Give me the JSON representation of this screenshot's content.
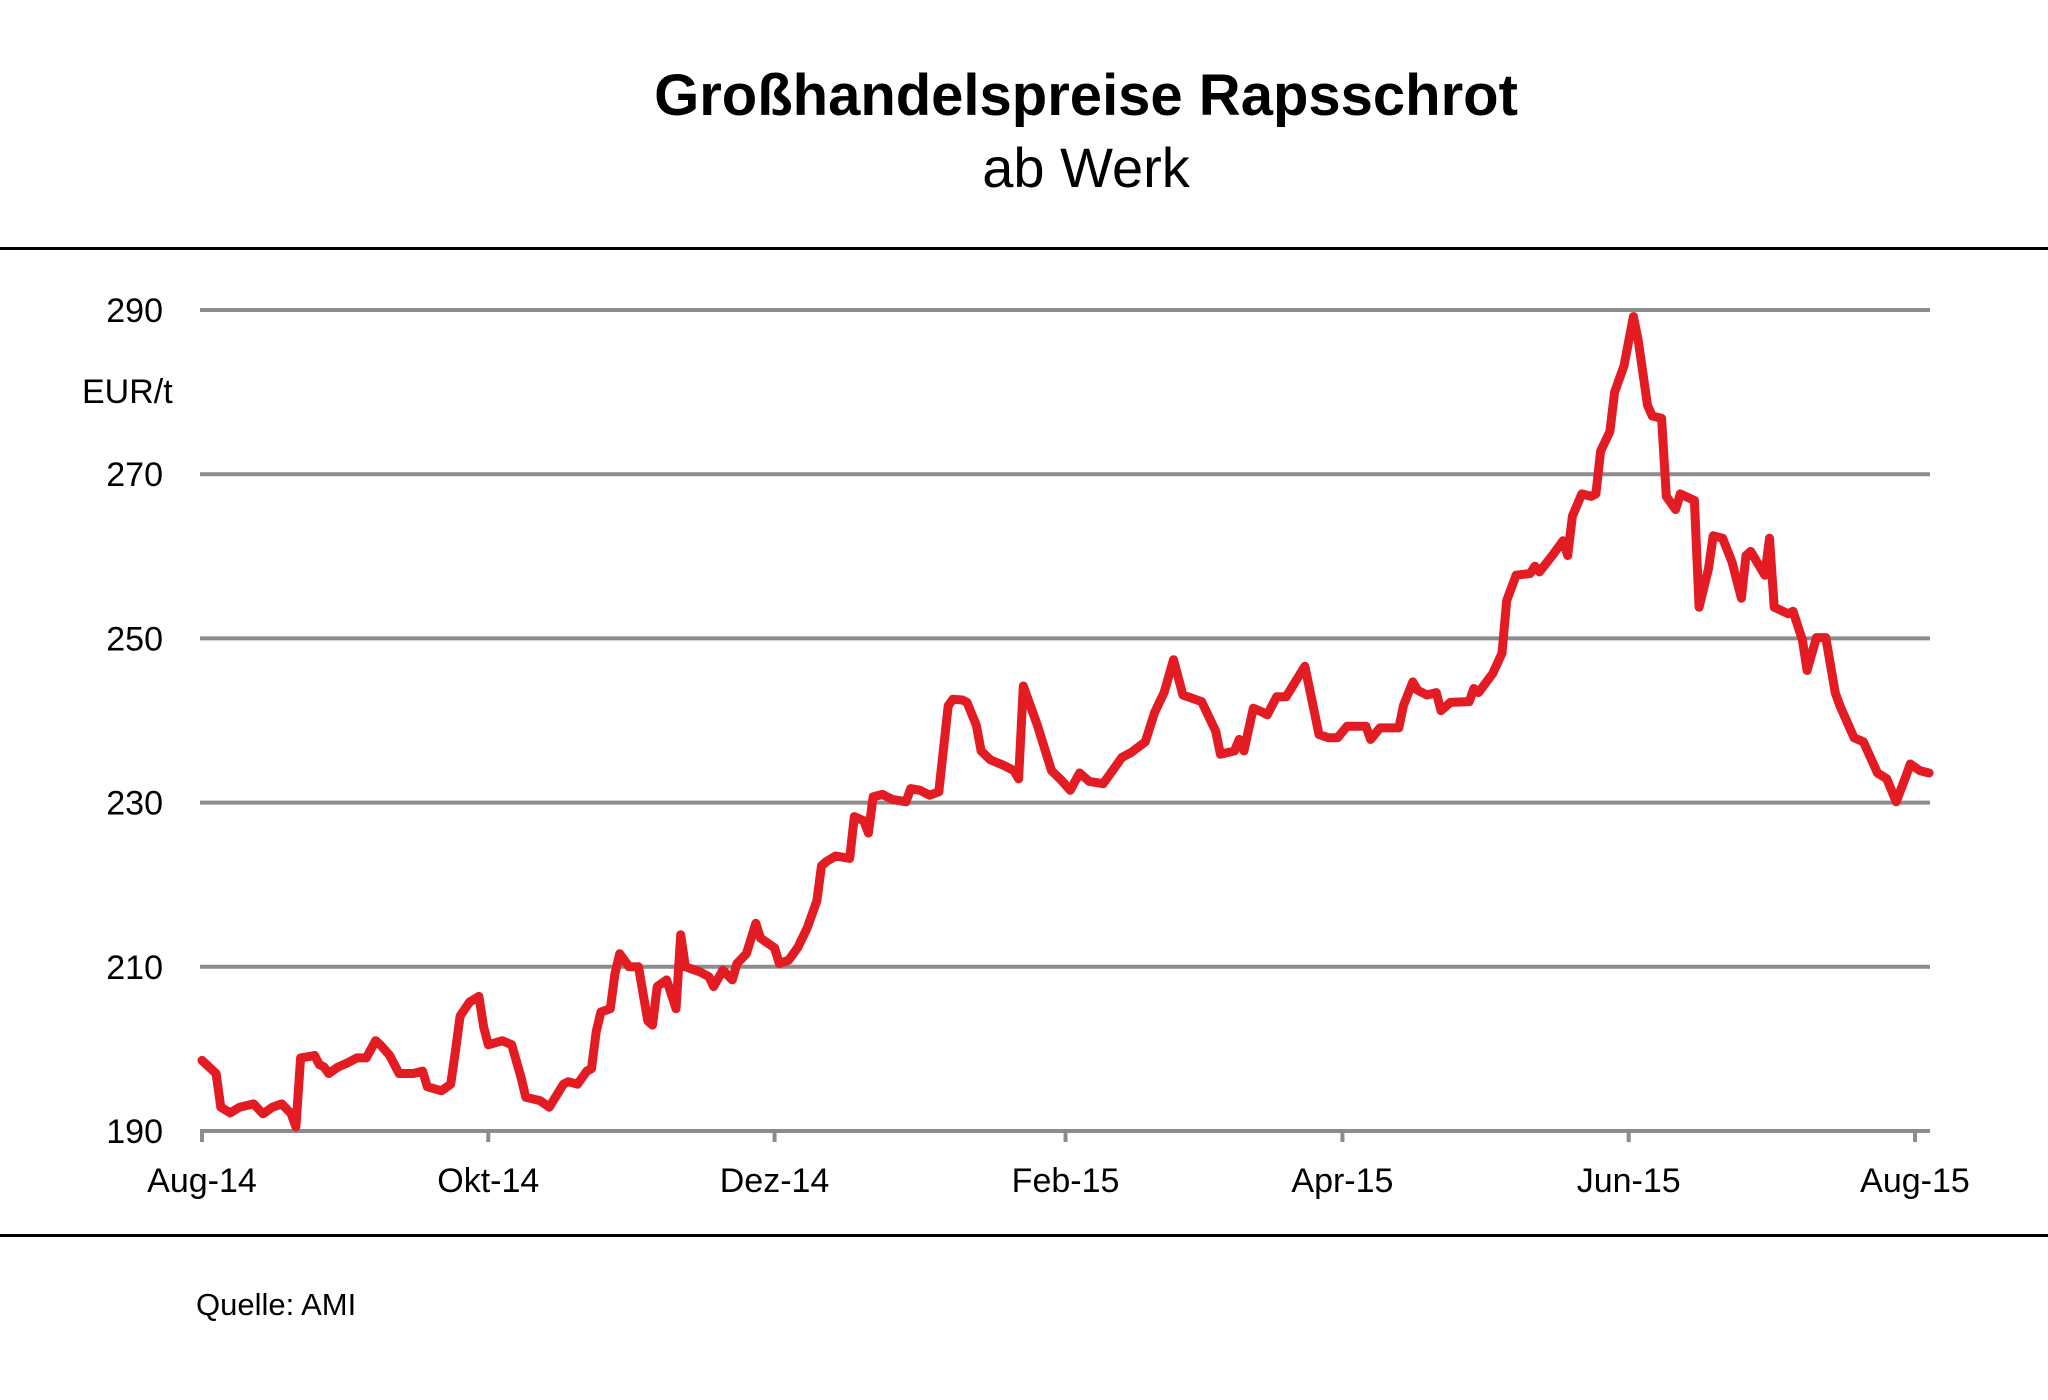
{
  "chart_data": {
    "type": "line",
    "title": "Großhandelspreise Rapsschrot",
    "subtitle": "ab Werk",
    "ylabel": "EUR/t",
    "xlabel": "",
    "source": "Quelle: AMI",
    "ylim": [
      190,
      290
    ],
    "yticks": [
      190,
      210,
      230,
      250,
      270,
      290
    ],
    "xlim_days": [
      0,
      368
    ],
    "xticks": [
      {
        "label": "Aug-14",
        "day": 0
      },
      {
        "label": "Okt-14",
        "day": 61
      },
      {
        "label": "Dez-14",
        "day": 122
      },
      {
        "label": "Feb-15",
        "day": 184
      },
      {
        "label": "Apr-15",
        "day": 243
      },
      {
        "label": "Jun-15",
        "day": 304
      },
      {
        "label": "Aug-15",
        "day": 365
      }
    ],
    "grid": true,
    "colors": {
      "line": "#e31b23",
      "grid": "#8c8c8c"
    },
    "series": [
      {
        "name": "Rapsschrot ab Werk",
        "x_unit": "days since 1 Aug 2014",
        "x": [
          0,
          3,
          4,
          6,
          8,
          11,
          13,
          15,
          17,
          19,
          20,
          21,
          24,
          25,
          26,
          27,
          29,
          31,
          33,
          35,
          37,
          38,
          40,
          42,
          45,
          47,
          48,
          51,
          53,
          54,
          55,
          57,
          59,
          60,
          61,
          64,
          66,
          68,
          69,
          72,
          74,
          77,
          78,
          80,
          82,
          83,
          84,
          85,
          87,
          88,
          89,
          91,
          93,
          95,
          96,
          97,
          99,
          101,
          102,
          103,
          106,
          108,
          109,
          111,
          113,
          114,
          116,
          118,
          119,
          122,
          123,
          125,
          127,
          129,
          131,
          132,
          133,
          135,
          138,
          139,
          141,
          142,
          143,
          145,
          147,
          150,
          151,
          153,
          155,
          157,
          159,
          160,
          162,
          163,
          165,
          166,
          168,
          171,
          173,
          174,
          175,
          177,
          178,
          181,
          183,
          185,
          187,
          189,
          192,
          194,
          196,
          198,
          201,
          203,
          205,
          207,
          209,
          213,
          216,
          217,
          220,
          221,
          222,
          224,
          226,
          227,
          229,
          231,
          235,
          238,
          240,
          242,
          244,
          248,
          249,
          251,
          255,
          256,
          258,
          259,
          261,
          263,
          264,
          266,
          270,
          271,
          272,
          275,
          277,
          278,
          280,
          283,
          284,
          285,
          288,
          290,
          291,
          292,
          294,
          296,
          297,
          298,
          300,
          301,
          303,
          305,
          306,
          308,
          309,
          311,
          312,
          314,
          315,
          318,
          319,
          321,
          322,
          324,
          326,
          328,
          329,
          330,
          333,
          334,
          335,
          338,
          339,
          341,
          342,
          344,
          346,
          348,
          349,
          352,
          354,
          357,
          359,
          361,
          363,
          364,
          366,
          368
        ],
        "values": [
          198.6,
          197.0,
          192.9,
          192.2,
          192.9,
          193.3,
          192.1,
          192.9,
          193.3,
          192.1,
          190.5,
          198.9,
          199.2,
          198.1,
          197.8,
          197.0,
          197.8,
          198.3,
          198.9,
          198.9,
          201.0,
          200.5,
          199.2,
          197.0,
          197.0,
          197.3,
          195.4,
          194.9,
          195.7,
          199.7,
          204.0,
          205.7,
          206.4,
          202.7,
          200.5,
          201.0,
          200.5,
          196.5,
          194.1,
          193.7,
          192.9,
          195.7,
          196.0,
          195.7,
          197.3,
          197.6,
          202.1,
          204.5,
          204.9,
          209.2,
          211.6,
          210.0,
          210.0,
          203.4,
          202.9,
          207.6,
          208.4,
          204.9,
          213.9,
          210.0,
          209.4,
          208.8,
          207.6,
          209.6,
          208.4,
          210.4,
          211.6,
          215.3,
          213.5,
          212.3,
          210.4,
          210.8,
          212.4,
          214.8,
          218.0,
          222.3,
          222.8,
          223.5,
          223.2,
          228.3,
          227.8,
          226.3,
          230.7,
          231.0,
          230.4,
          230.1,
          231.7,
          231.5,
          230.9,
          231.3,
          241.8,
          242.6,
          242.5,
          242.2,
          239.4,
          236.3,
          235.2,
          234.5,
          233.9,
          232.9,
          244.2,
          241.0,
          239.4,
          233.9,
          232.8,
          231.5,
          233.6,
          232.6,
          232.3,
          233.9,
          235.5,
          236.1,
          237.4,
          241.0,
          243.4,
          247.4,
          243.1,
          242.3,
          238.7,
          235.9,
          236.3,
          237.7,
          236.3,
          241.5,
          241.0,
          240.7,
          242.9,
          242.9,
          246.6,
          238.3,
          237.9,
          237.9,
          239.3,
          239.3,
          237.7,
          239.1,
          239.1,
          241.8,
          244.7,
          243.7,
          243.1,
          243.4,
          241.2,
          242.2,
          242.3,
          243.9,
          243.4,
          245.7,
          248.2,
          254.6,
          257.7,
          257.9,
          258.8,
          258.1,
          260.3,
          261.9,
          260.1,
          264.9,
          267.6,
          267.3,
          267.6,
          272.8,
          275.2,
          280.0,
          283.2,
          289.2,
          286.4,
          278.4,
          277.1,
          276.8,
          267.3,
          265.7,
          267.6,
          266.8,
          253.8,
          258.5,
          262.5,
          262.2,
          259.3,
          254.9,
          260.1,
          260.6,
          257.7,
          262.2,
          253.8,
          253.0,
          253.3,
          249.8,
          246.1,
          250.1,
          250.1,
          243.4,
          241.8,
          237.9,
          237.4,
          233.6,
          232.9,
          230.1,
          233.1,
          234.7,
          233.9,
          233.6
        ]
      }
    ]
  }
}
